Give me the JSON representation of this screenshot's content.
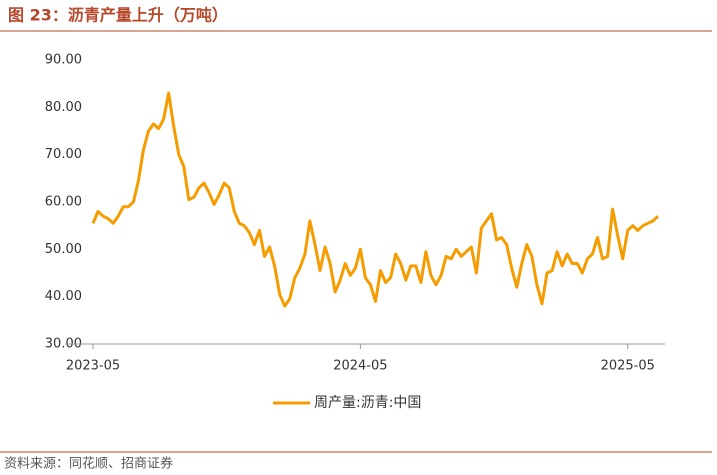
{
  "chart_data": {
    "type": "line",
    "title": "图 23：沥青产量上升（万吨）",
    "source": "资料来源：同花顺、招商证券",
    "categories": [
      "2023-05",
      null,
      null,
      null,
      null,
      null,
      null,
      null,
      null,
      null,
      null,
      null,
      null,
      null,
      null,
      null,
      null,
      null,
      null,
      null,
      null,
      null,
      null,
      null,
      null,
      null,
      null,
      null,
      null,
      null,
      null,
      null,
      null,
      null,
      null,
      null,
      null,
      null,
      null,
      null,
      null,
      null,
      null,
      null,
      null,
      null,
      null,
      null,
      null,
      null,
      null,
      null,
      null,
      "2024-05",
      null,
      null,
      null,
      null,
      null,
      null,
      null,
      null,
      null,
      null,
      null,
      null,
      null,
      null,
      null,
      null,
      null,
      null,
      null,
      null,
      null,
      null,
      null,
      null,
      null,
      null,
      null,
      null,
      null,
      null,
      null,
      null,
      null,
      null,
      null,
      null,
      null,
      null,
      null,
      null,
      null,
      null,
      null,
      null,
      null,
      null,
      null,
      null,
      null,
      null,
      null,
      null,
      "2025-05",
      null,
      null,
      null,
      null,
      null,
      null
    ],
    "series": [
      {
        "name": "周产量:沥青:中国",
        "color": "#f59c00",
        "values": [
          55.5,
          58,
          57,
          56.5,
          55.5,
          57,
          59,
          59,
          60,
          64.5,
          71,
          75,
          76.5,
          75.5,
          77.5,
          83,
          76,
          70,
          67.5,
          60.5,
          61,
          63,
          64,
          62,
          59.5,
          61.5,
          64,
          63,
          58,
          55.5,
          55,
          53.5,
          51,
          54,
          48.5,
          50.5,
          46.5,
          40.5,
          38,
          39.5,
          44,
          46,
          49,
          56,
          51,
          45.5,
          50.5,
          47,
          41,
          43.5,
          47,
          44.5,
          46,
          50,
          44,
          42.5,
          39,
          45.5,
          43,
          44,
          49,
          47,
          43.5,
          46.5,
          46.5,
          43,
          49.5,
          44.5,
          42.5,
          44.5,
          48.5,
          48,
          50,
          48.5,
          49.5,
          50.5,
          45,
          54.5,
          56,
          57.5,
          52,
          52.5,
          51,
          46,
          42,
          47,
          51,
          48.5,
          42.5,
          38.5,
          45,
          45.5,
          49.5,
          46.5,
          49,
          47,
          47,
          45,
          48,
          49,
          52.5,
          48,
          48.5,
          58.5,
          53,
          48,
          54,
          55,
          54,
          55,
          55.5,
          56,
          57
        ]
      }
    ],
    "ylim": [
      30,
      90
    ],
    "yticks": [
      {
        "value": 30,
        "label": "30.00"
      },
      {
        "value": 40,
        "label": "40.00"
      },
      {
        "value": 50,
        "label": "50.00"
      },
      {
        "value": 60,
        "label": "60.00"
      },
      {
        "value": 70,
        "label": "70.00"
      },
      {
        "value": 80,
        "label": "80.00"
      },
      {
        "value": 90,
        "label": "90.00"
      }
    ],
    "grid": false,
    "legend": "bottom"
  }
}
